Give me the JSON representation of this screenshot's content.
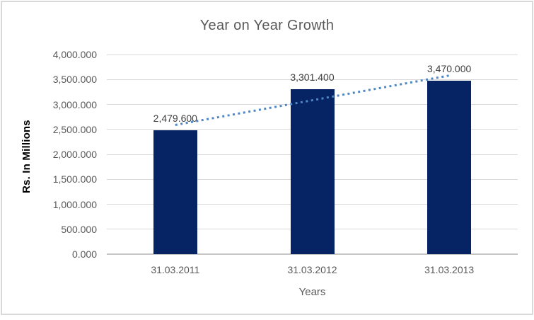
{
  "window": {
    "background_color": "#FFFFFF",
    "border_color": "#D9D9D9"
  },
  "chart_data": {
    "type": "bar",
    "title": "Year on Year Growth",
    "xlabel": "Years",
    "ylabel": "Rs. In Millions",
    "categories": [
      "31.03.2011",
      "31.03.2012",
      "31.03.2013"
    ],
    "values": [
      2479.6,
      3301.4,
      3470.0
    ],
    "data_labels": [
      "2,479.600",
      "3,301.400",
      "3,470.000"
    ],
    "ylim": [
      0,
      4000
    ],
    "y_ticks": [
      {
        "value": 4000,
        "label": "4,000.000"
      },
      {
        "value": 3500,
        "label": "3,500.000"
      },
      {
        "value": 3000,
        "label": "3,000.000"
      },
      {
        "value": 2500,
        "label": "2,500.000"
      },
      {
        "value": 2000,
        "label": "2,000.000"
      },
      {
        "value": 1500,
        "label": "1,500.000"
      },
      {
        "value": 1000,
        "label": "1,000.000"
      },
      {
        "value": 500,
        "label": "500.000"
      },
      {
        "value": 0,
        "label": "0.000"
      }
    ],
    "grid": true,
    "legend": "none",
    "bar_color": "#062363",
    "trendline": {
      "type": "linear",
      "style": "dotted",
      "color": "#4E87C6",
      "start_value": 2588.47,
      "end_value": 3578.87
    },
    "colors": {
      "title_text": "#595959",
      "tick_text": "#595959",
      "data_label_text": "#404040",
      "axis_title_text": "#000000",
      "gridline": "#D9D9D9",
      "axis_line": "#C6C6C6"
    }
  }
}
